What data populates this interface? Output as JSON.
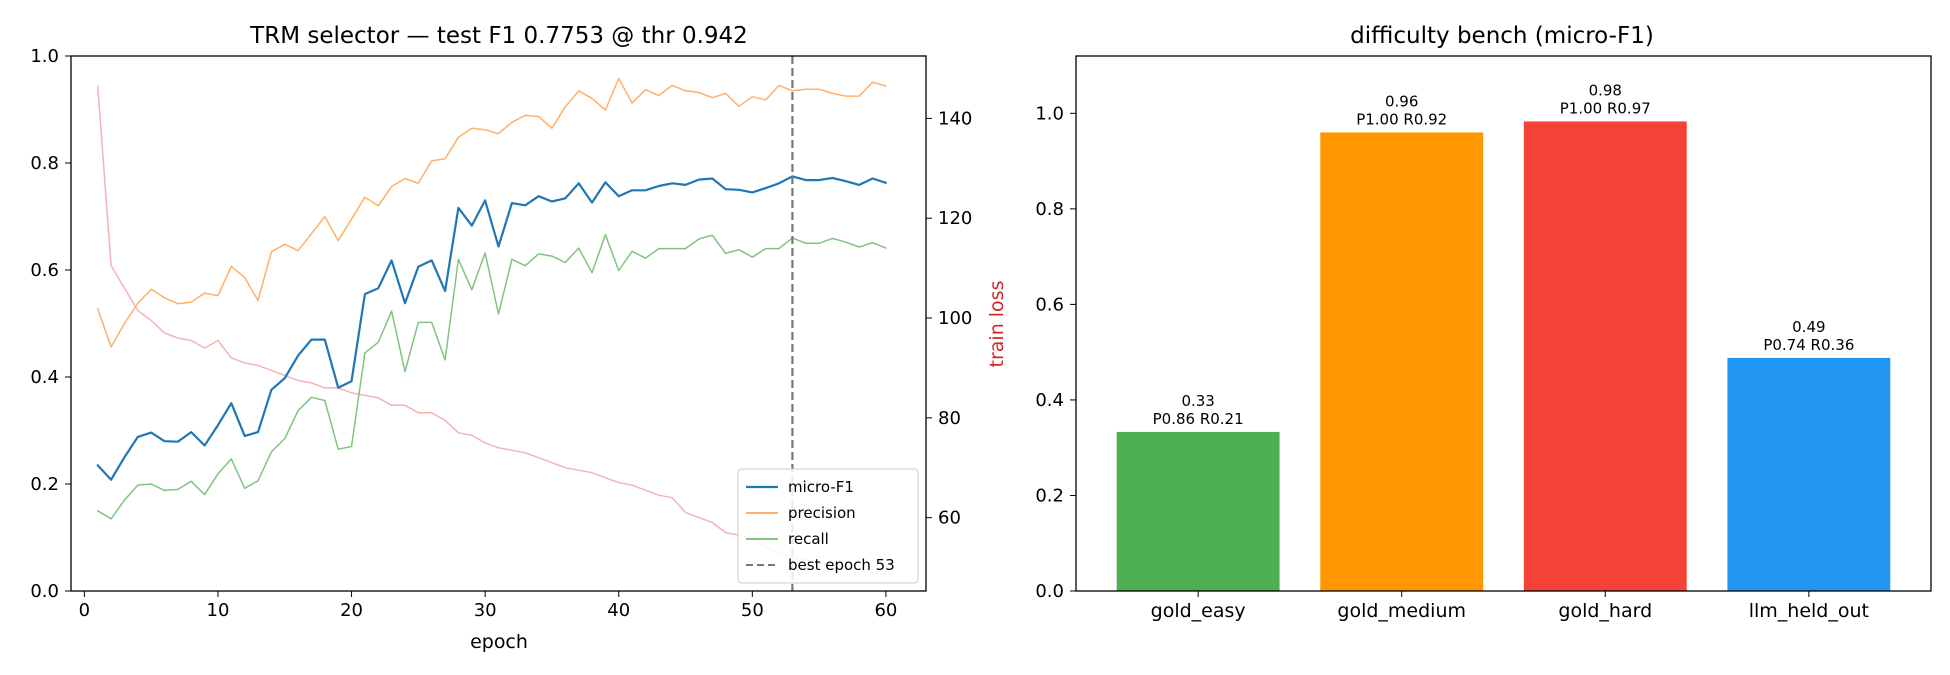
{
  "chart_data": [
    {
      "type": "line",
      "title": "TRM selector — test F1 0.7753 @ thr 0.942",
      "xlabel": "epoch",
      "ylabel": "",
      "y2label": "train loss",
      "xlim": [
        -1,
        63
      ],
      "ylim": [
        0,
        1.0
      ],
      "y2lim": [
        45.3,
        152.5
      ],
      "xticks": [
        0,
        10,
        20,
        30,
        40,
        50,
        60
      ],
      "yticks": [
        0.0,
        0.2,
        0.4,
        0.6,
        0.8,
        1.0
      ],
      "y2ticks": [
        60,
        80,
        100,
        120,
        140
      ],
      "grid": false,
      "legend_position": "lower right",
      "x": [
        1,
        2,
        3,
        4,
        5,
        6,
        7,
        8,
        9,
        10,
        11,
        12,
        13,
        14,
        15,
        16,
        17,
        18,
        19,
        20,
        21,
        22,
        23,
        24,
        25,
        26,
        27,
        28,
        29,
        30,
        31,
        32,
        33,
        34,
        35,
        36,
        37,
        38,
        39,
        40,
        41,
        42,
        43,
        44,
        45,
        46,
        47,
        48,
        49,
        50,
        51,
        52,
        53,
        54,
        55,
        56,
        57,
        58,
        59,
        60
      ],
      "series": [
        {
          "name": "micro-F1",
          "axis": "left",
          "color": "#1f77b4",
          "width": 2.2,
          "opacity": 1,
          "values": [
            0.235,
            0.208,
            0.25,
            0.288,
            0.296,
            0.28,
            0.279,
            0.297,
            0.272,
            0.31,
            0.351,
            0.29,
            0.297,
            0.376,
            0.398,
            0.44,
            0.47,
            0.47,
            0.38,
            0.392,
            0.555,
            0.566,
            0.618,
            0.538,
            0.606,
            0.618,
            0.561,
            0.716,
            0.683,
            0.73,
            0.644,
            0.725,
            0.721,
            0.738,
            0.728,
            0.734,
            0.762,
            0.726,
            0.764,
            0.738,
            0.749,
            0.749,
            0.757,
            0.762,
            0.759,
            0.769,
            0.771,
            0.751,
            0.75,
            0.745,
            0.753,
            0.762,
            0.775,
            0.768,
            0.768,
            0.772,
            0.766,
            0.759,
            0.771,
            0.763
          ]
        },
        {
          "name": "precision",
          "axis": "left",
          "color": "#ffb069",
          "width": 1.5,
          "opacity": 1,
          "values": [
            0.528,
            0.456,
            0.5,
            0.538,
            0.564,
            0.548,
            0.537,
            0.54,
            0.557,
            0.552,
            0.607,
            0.586,
            0.543,
            0.634,
            0.648,
            0.636,
            0.668,
            0.7,
            0.655,
            0.695,
            0.736,
            0.72,
            0.756,
            0.771,
            0.762,
            0.804,
            0.808,
            0.848,
            0.865,
            0.862,
            0.855,
            0.876,
            0.889,
            0.887,
            0.865,
            0.905,
            0.935,
            0.921,
            0.899,
            0.958,
            0.912,
            0.937,
            0.926,
            0.945,
            0.935,
            0.932,
            0.922,
            0.93,
            0.906,
            0.924,
            0.918,
            0.945,
            0.935,
            0.938,
            0.938,
            0.93,
            0.925,
            0.925,
            0.951,
            0.944
          ]
        },
        {
          "name": "recall",
          "axis": "left",
          "color": "#80c480",
          "width": 1.5,
          "opacity": 1,
          "values": [
            0.15,
            0.135,
            0.17,
            0.198,
            0.2,
            0.188,
            0.19,
            0.205,
            0.18,
            0.219,
            0.247,
            0.192,
            0.206,
            0.26,
            0.285,
            0.337,
            0.362,
            0.356,
            0.265,
            0.27,
            0.445,
            0.465,
            0.523,
            0.41,
            0.502,
            0.502,
            0.432,
            0.62,
            0.563,
            0.632,
            0.518,
            0.62,
            0.608,
            0.63,
            0.626,
            0.614,
            0.641,
            0.595,
            0.666,
            0.599,
            0.635,
            0.622,
            0.64,
            0.64,
            0.64,
            0.658,
            0.665,
            0.631,
            0.638,
            0.624,
            0.64,
            0.64,
            0.66,
            0.65,
            0.65,
            0.659,
            0.652,
            0.643,
            0.651,
            0.641
          ]
        },
        {
          "name": "train loss",
          "axis": "right",
          "color": "#f5b3b3",
          "width": 1.5,
          "opacity": 1,
          "in_legend": false,
          "values": [
            146.5,
            110.5,
            106.0,
            101.5,
            99.5,
            97.0,
            96.0,
            95.5,
            94.0,
            95.5,
            92.0,
            91.0,
            90.5,
            89.5,
            88.5,
            87.5,
            87.0,
            86.0,
            86.0,
            85.0,
            84.5,
            84.0,
            82.5,
            82.5,
            81.0,
            81.0,
            79.5,
            77.0,
            76.5,
            75.0,
            74.0,
            73.5,
            73.0,
            72.0,
            71.0,
            70.0,
            69.5,
            69.0,
            68.0,
            67.0,
            66.5,
            65.5,
            64.5,
            64.0,
            61.0,
            60.0,
            59.0,
            57.0,
            56.5,
            56.0,
            54.0,
            53.0,
            52.0,
            51.5,
            51.0,
            50.5,
            50.0,
            49.5,
            49.0,
            48.7
          ]
        }
      ],
      "vline": {
        "x": 53,
        "label": "best epoch 53",
        "color": "#777777"
      }
    },
    {
      "type": "bar",
      "title": "difficulty bench (micro-F1)",
      "xlabel": "",
      "ylabel": "",
      "ylim": [
        0,
        1.12
      ],
      "yticks": [
        0.0,
        0.2,
        0.4,
        0.6,
        0.8,
        1.0
      ],
      "grid": false,
      "categories": [
        "gold_easy",
        "gold_medium",
        "gold_hard",
        "llm_held_out"
      ],
      "values": [
        0.333,
        0.96,
        0.983,
        0.488
      ],
      "colors": [
        "#4caf50",
        "#ff9800",
        "#f44336",
        "#2196f3"
      ],
      "labels": [
        [
          "0.33",
          "P0.86 R0.21"
        ],
        [
          "0.96",
          "P1.00 R0.92"
        ],
        [
          "0.98",
          "P1.00 R0.97"
        ],
        [
          "0.49",
          "P0.74 R0.36"
        ]
      ]
    }
  ]
}
